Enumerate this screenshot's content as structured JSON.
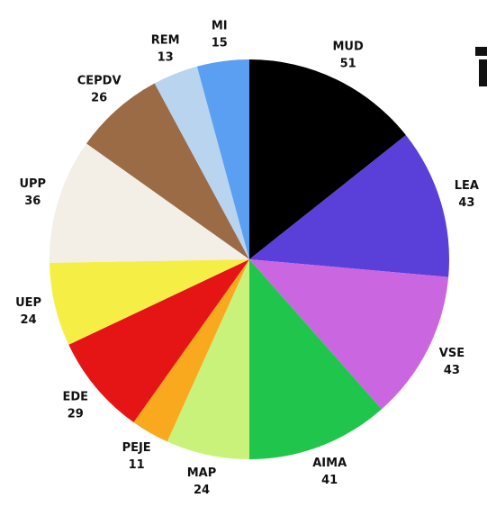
{
  "chart_data": {
    "type": "pie",
    "categories": [
      "MUD",
      "LEA",
      "VSE",
      "AIMA",
      "MAP",
      "PEJE",
      "EDE",
      "UEP",
      "UPP",
      "CEPDV",
      "REM",
      "MI"
    ],
    "values": [
      51,
      43,
      43,
      41,
      24,
      11,
      29,
      24,
      36,
      26,
      13,
      15
    ],
    "colors": [
      "#000000",
      "#5b3fd9",
      "#c966e0",
      "#1fc64b",
      "#c8f27a",
      "#f8a91e",
      "#e51515",
      "#f5ef45",
      "#f3efe7",
      "#9a6b45",
      "#b8d4ef",
      "#5b9ff2"
    ],
    "start_angle": 90,
    "direction": "clockwise"
  }
}
